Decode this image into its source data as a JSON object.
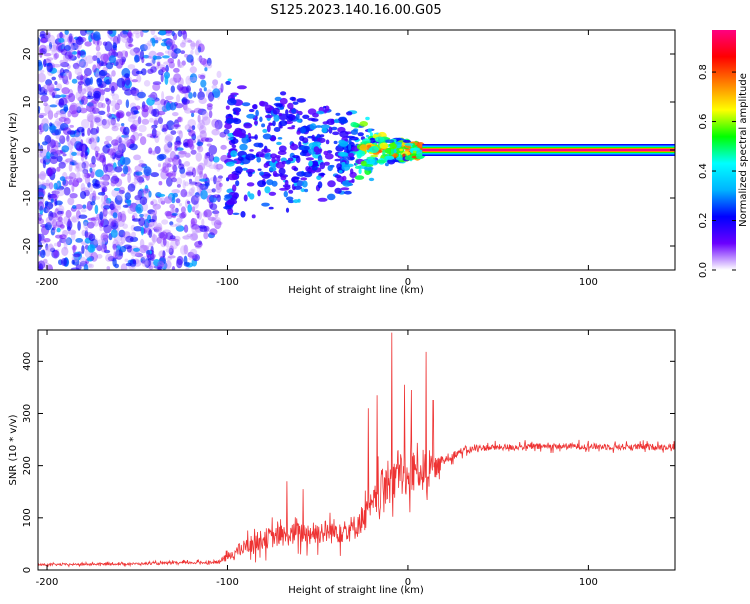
{
  "figure_title": "S125.2023.140.16.00.G05",
  "colorbar": {
    "label": "Normalized spectral amplitude",
    "ticks": [
      "0.0",
      "0.2",
      "0.4",
      "0.6",
      "0.8"
    ],
    "colors": [
      "#ffffff",
      "#6a00ff",
      "#0000ff",
      "#00b4ff",
      "#00ffff",
      "#00ff00",
      "#ffff00",
      "#ff8000",
      "#ff0000",
      "#ff0080"
    ]
  },
  "chart_data": [
    {
      "type": "heatmap",
      "title": "",
      "xlabel": "Height of straight line (km)",
      "ylabel": "Frequency (Hz)",
      "xlim": [
        -205,
        148
      ],
      "ylim": [
        -25,
        25
      ],
      "xticks": [
        "-200",
        "-100",
        "0",
        "100"
      ],
      "yticks": [
        "-20",
        "-10",
        "0",
        "10",
        "20"
      ],
      "line_freq": 0,
      "line_start": 8,
      "noise_edges": [
        -205,
        -120,
        -100
      ],
      "colormap": "rainbow"
    },
    {
      "type": "line",
      "title": "",
      "xlabel": "Height of straight line (km)",
      "ylabel": "SNR (10 * v/v)",
      "xlim": [
        -205,
        148
      ],
      "ylim": [
        0,
        460
      ],
      "xticks": [
        "-200",
        "-100",
        "0",
        "100"
      ],
      "yticks": [
        "0",
        "100",
        "200",
        "300",
        "400"
      ],
      "color": "#ee3333",
      "x": [
        -205,
        -150,
        -105,
        -100,
        -90,
        -80,
        -70,
        -60,
        -50,
        -40,
        -30,
        -20,
        -15,
        -10,
        -5,
        0,
        5,
        10,
        15,
        20,
        25,
        30,
        40,
        60,
        80,
        100,
        120,
        148
      ],
      "y": [
        10,
        12,
        15,
        25,
        45,
        60,
        65,
        70,
        72,
        75,
        80,
        120,
        150,
        170,
        190,
        170,
        200,
        185,
        195,
        210,
        220,
        228,
        234,
        236,
        237,
        237,
        236,
        236
      ],
      "noise": [
        2,
        2,
        3,
        8,
        15,
        20,
        20,
        22,
        22,
        25,
        25,
        30,
        40,
        45,
        45,
        40,
        45,
        40,
        20,
        10,
        8,
        7,
        6,
        6,
        6,
        6,
        6,
        6
      ],
      "peaks": [
        {
          "x": -67,
          "y": 170
        },
        {
          "x": -58,
          "y": 155
        },
        {
          "x": -22,
          "y": 310
        },
        {
          "x": -17,
          "y": 335
        },
        {
          "x": -9,
          "y": 455
        },
        {
          "x": -2,
          "y": 355
        },
        {
          "x": 2,
          "y": 345
        },
        {
          "x": 10,
          "y": 418
        },
        {
          "x": 14,
          "y": 325
        }
      ]
    }
  ]
}
